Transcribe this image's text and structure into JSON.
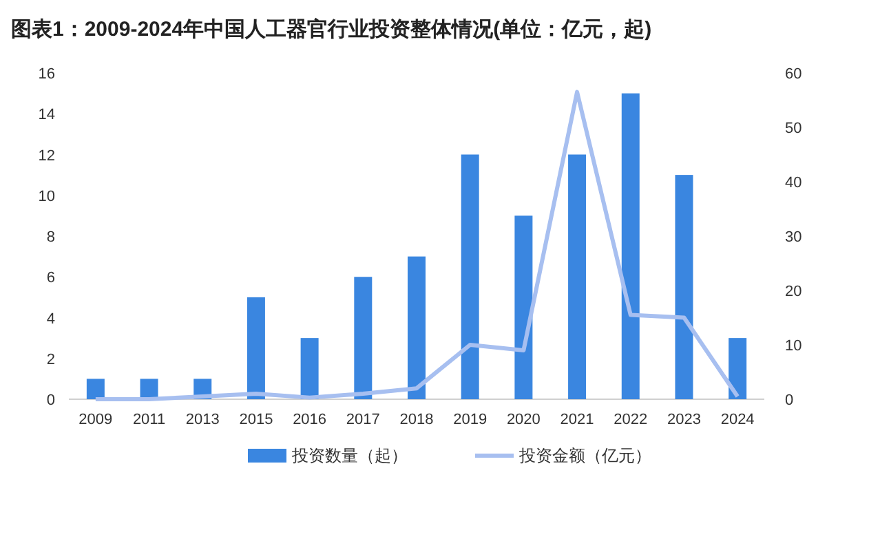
{
  "chart_data": {
    "type": "bar",
    "title": "图表1：2009-2024年中国人工器官行业投资整体情况(单位：亿元，起)",
    "categories": [
      "2009",
      "2011",
      "2013",
      "2015",
      "2016",
      "2017",
      "2018",
      "2019",
      "2020",
      "2021",
      "2022",
      "2023",
      "2024"
    ],
    "series": [
      {
        "name": "投资数量（起）",
        "color": "#3a86e0",
        "values": [
          1,
          1,
          1,
          5,
          3,
          6,
          7,
          12,
          9,
          12,
          15,
          11,
          3
        ]
      },
      {
        "name": "投资金额（亿元）",
        "color": "#a7bff0",
        "type": "line",
        "axis": "y2",
        "values": [
          0,
          0,
          0.5,
          1,
          0.3,
          1,
          2,
          10,
          9,
          56.5,
          15.5,
          15,
          0.5
        ]
      }
    ],
    "ylim": [
      0,
      16
    ],
    "yticks": [
      0,
      2,
      4,
      6,
      8,
      10,
      12,
      14,
      16
    ],
    "y2lim": [
      0,
      60
    ],
    "y2ticks": [
      0,
      10,
      20,
      30,
      40,
      50,
      60
    ],
    "legend": "bottom"
  }
}
